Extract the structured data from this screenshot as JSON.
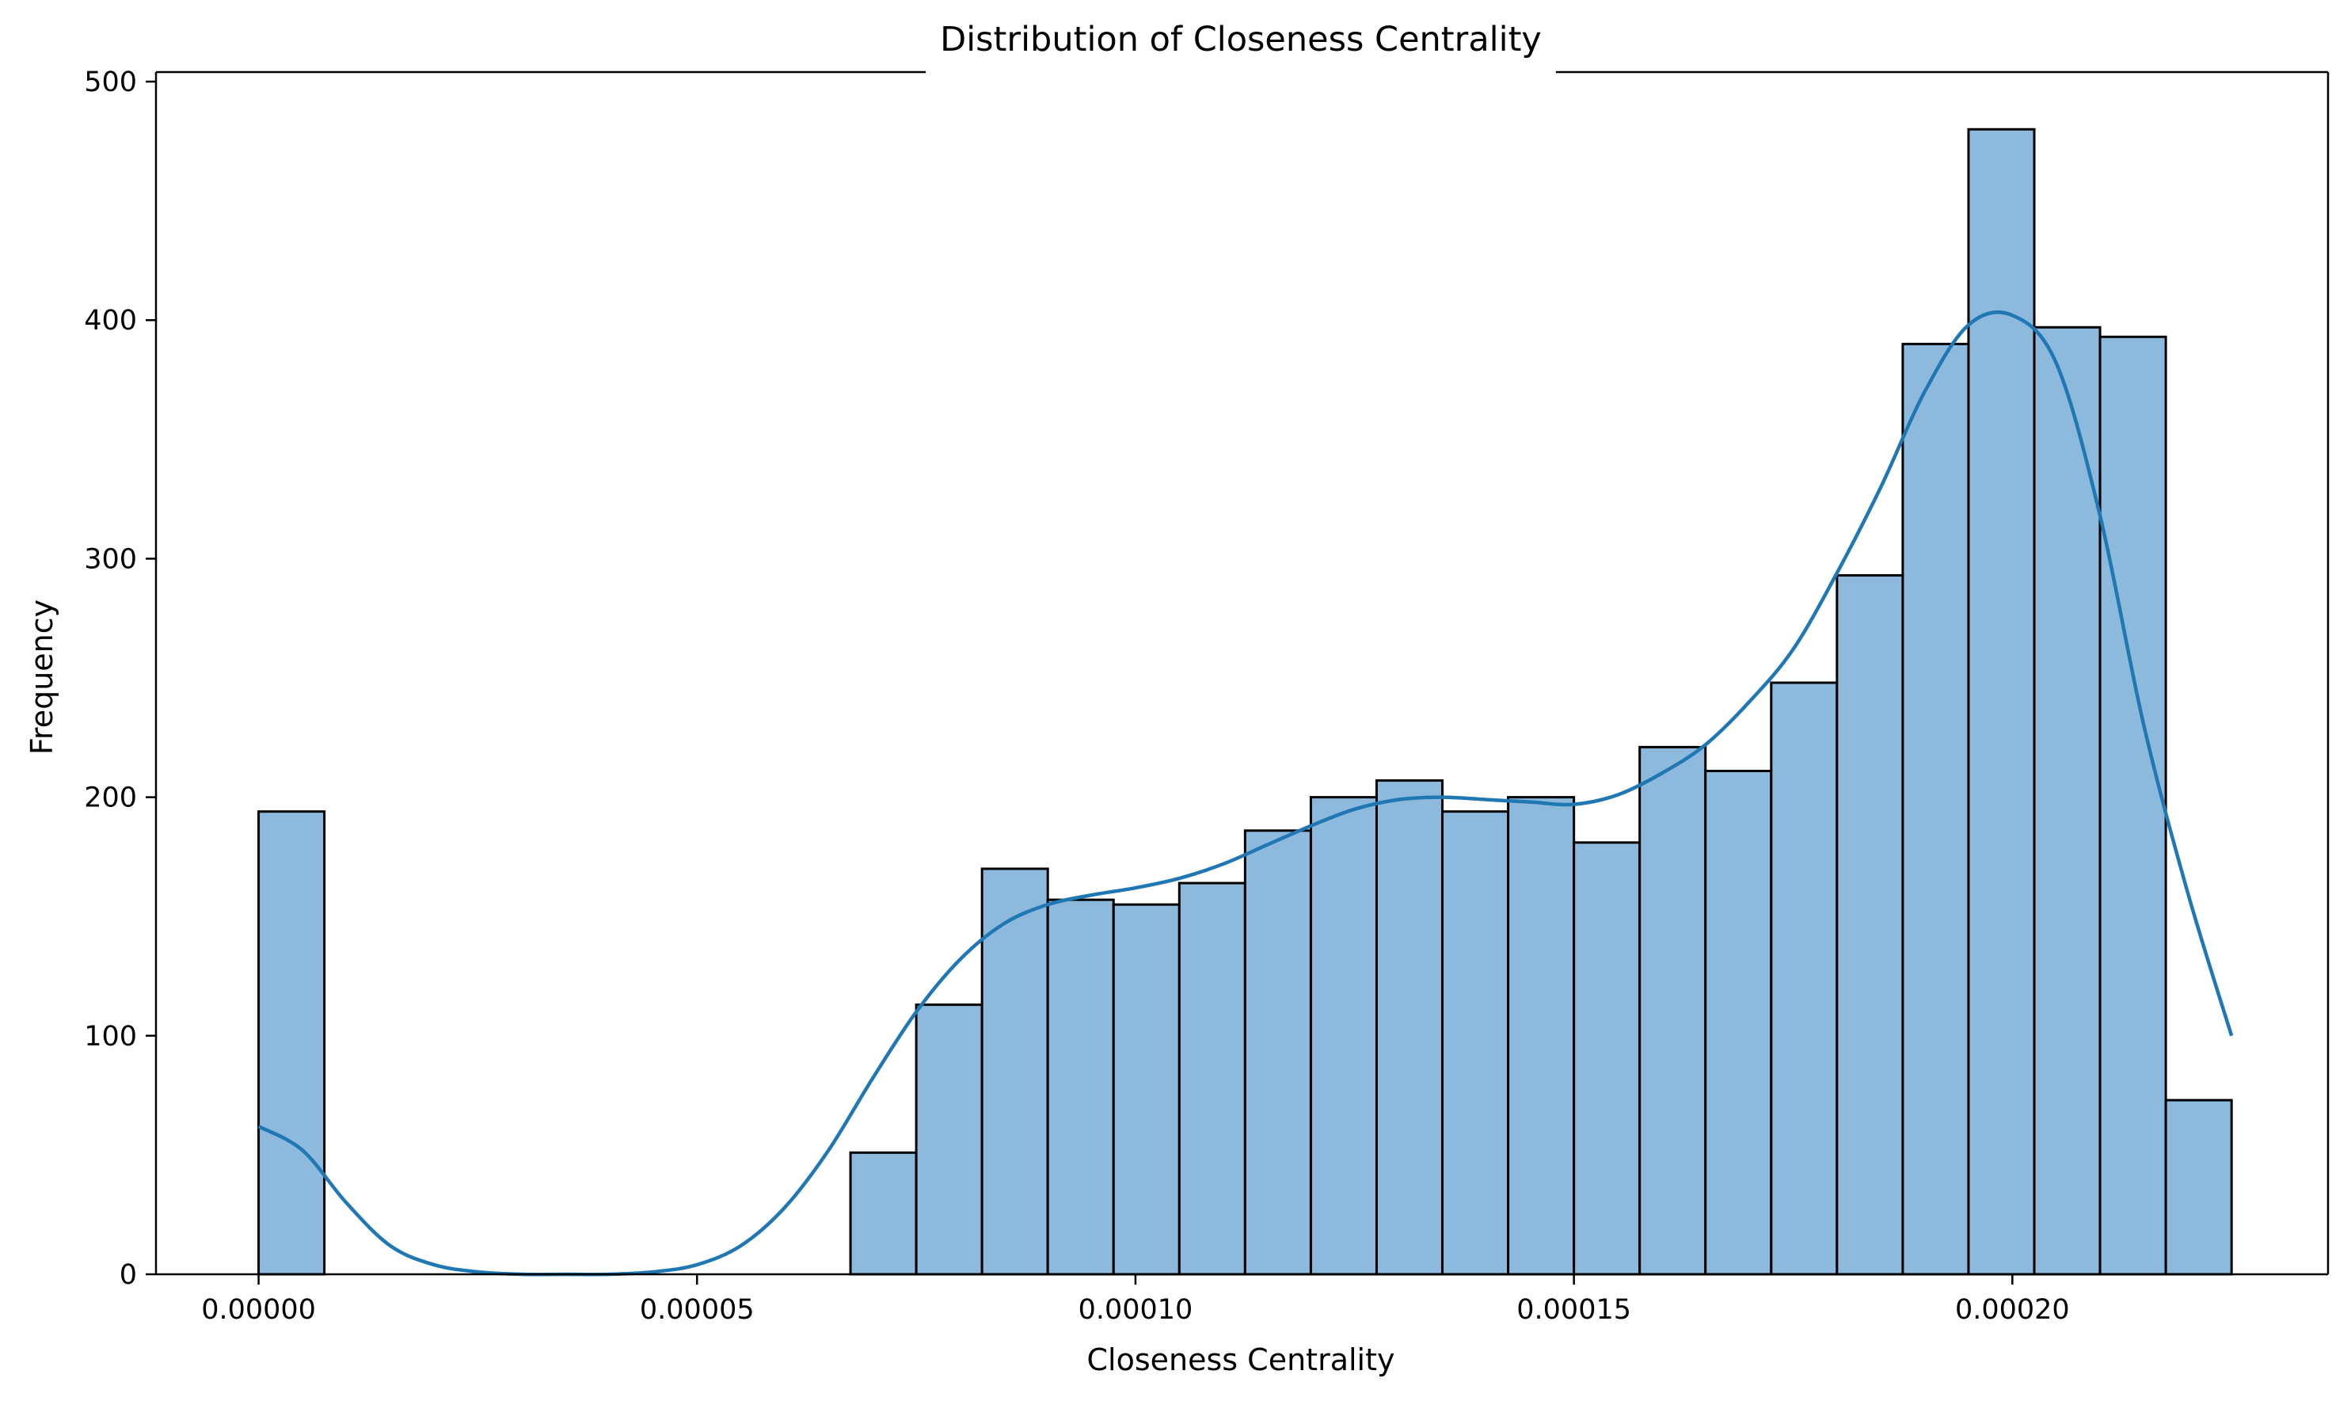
{
  "chart_data": {
    "type": "bar",
    "title": "Distribution of Closeness Centrality",
    "xlabel": "Closeness Centrality",
    "ylabel": "Frequency",
    "xlim": [
      -1.17e-05,
      0.000236
    ],
    "ylim": [
      0,
      504
    ],
    "xticks": [
      0,
      5e-05,
      0.0001,
      0.00015,
      0.0002
    ],
    "xtick_labels": [
      "0.00000",
      "0.00005",
      "0.00010",
      "0.00015",
      "0.00020"
    ],
    "yticks": [
      0,
      100,
      200,
      300,
      400,
      500
    ],
    "ytick_labels": [
      "0",
      "100",
      "200",
      "300",
      "400",
      "500"
    ],
    "grid": false,
    "bar_color": "#8db9dc",
    "line_color": "#1f77b4",
    "bin_edges": [
      0,
      7.5e-06,
      1.5e-05,
      2.25e-05,
      3e-05,
      3.75e-05,
      4.5e-05,
      5.25e-05,
      6e-05,
      6.75e-05,
      7.5e-05,
      8.25e-05,
      9e-05,
      9.75e-05,
      0.000105,
      0.0001125,
      0.00012,
      0.0001275,
      0.000135,
      0.0001425,
      0.00015,
      0.0001575,
      0.000165,
      0.0001725,
      0.00018,
      0.0001875,
      0.000195,
      0.0002025,
      0.00021,
      0.0002175,
      0.000225
    ],
    "counts": [
      194,
      0,
      0,
      0,
      0,
      0,
      0,
      0,
      0,
      51,
      113,
      170,
      157,
      155,
      164,
      186,
      200,
      207,
      194,
      200,
      181,
      221,
      211,
      248,
      293,
      390,
      480,
      397,
      393,
      73
    ],
    "kde": {
      "x": [
        0,
        5e-06,
        1e-05,
        1.5e-05,
        2e-05,
        2.5e-05,
        3e-05,
        3.5e-05,
        4e-05,
        4.5e-05,
        5e-05,
        5.5e-05,
        6e-05,
        6.5e-05,
        7e-05,
        7.5e-05,
        8e-05,
        8.5e-05,
        9e-05,
        9.5e-05,
        0.0001,
        0.000105,
        0.00011,
        0.000115,
        0.00012,
        0.000125,
        0.00013,
        0.000135,
        0.00014,
        0.000145,
        0.00015,
        0.000155,
        0.00016,
        0.000165,
        0.00017,
        0.000175,
        0.00018,
        0.000185,
        0.00019,
        0.000195,
        0.0002,
        0.000205,
        0.00021,
        0.000215,
        0.00022,
        0.000225
      ],
      "y": [
        62,
        52,
        30,
        12,
        4,
        1,
        0,
        0,
        0,
        1,
        4,
        12,
        28,
        52,
        82,
        110,
        132,
        147,
        155,
        159,
        162,
        166,
        172,
        180,
        188,
        195,
        199,
        200,
        199,
        198,
        197,
        201,
        210,
        222,
        240,
        262,
        294,
        330,
        370,
        398,
        402,
        382,
        318,
        230,
        160,
        100
      ]
    }
  }
}
